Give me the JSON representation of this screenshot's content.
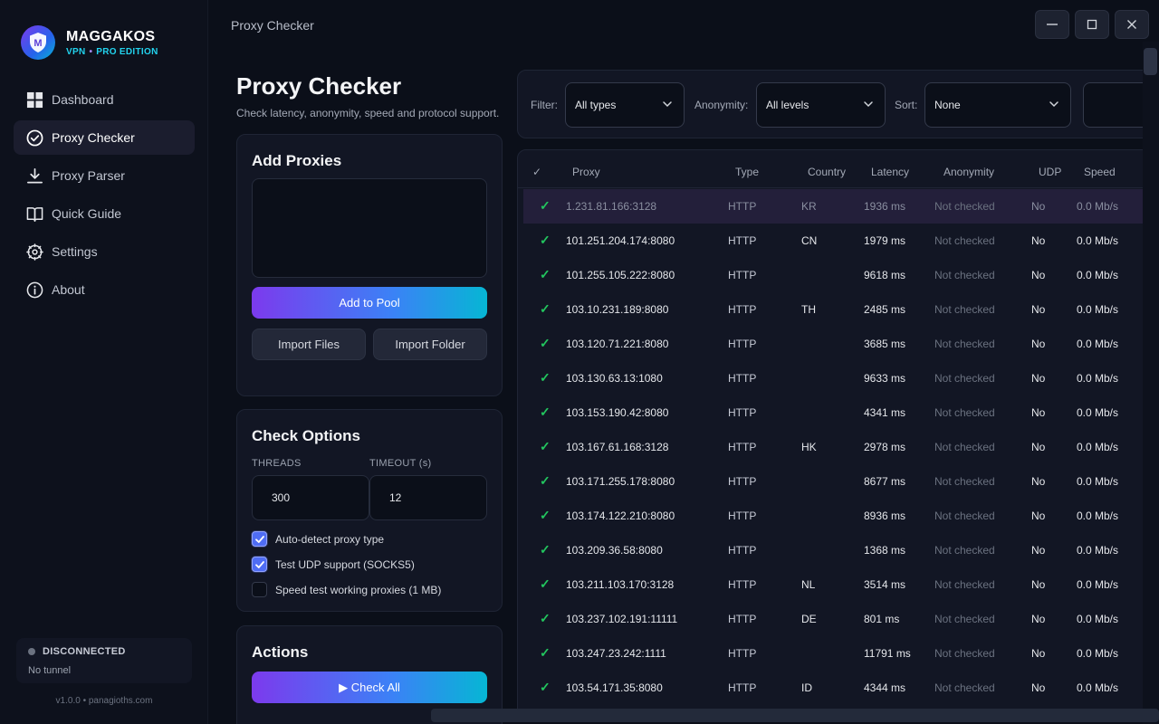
{
  "window": {
    "title": "Proxy Checker"
  },
  "brand": {
    "name": "MAGGAKOS",
    "sub_left": "VPN",
    "sub_dot": "•",
    "sub_right": "PRO EDITION",
    "logo_letter": "M"
  },
  "nav": [
    {
      "label": "Dashboard",
      "icon": "dashboard-icon"
    },
    {
      "label": "Proxy Checker",
      "icon": "check-circle-icon",
      "active": true
    },
    {
      "label": "Proxy Parser",
      "icon": "download-icon"
    },
    {
      "label": "Quick Guide",
      "icon": "book-icon"
    },
    {
      "label": "Settings",
      "icon": "gear-icon"
    },
    {
      "label": "About",
      "icon": "info-icon"
    }
  ],
  "status": {
    "state": "DISCONNECTED",
    "tunnel": "No tunnel"
  },
  "footer": {
    "version": "v1.0.0  •  panagioths.com"
  },
  "page": {
    "title": "Proxy Checker",
    "subtitle": "Check latency, anonymity, speed and protocol support."
  },
  "add_proxies": {
    "title": "Add Proxies",
    "textarea_value": "",
    "add_button": "Add to Pool",
    "import_files": "Import Files",
    "import_folder": "Import Folder"
  },
  "check_options": {
    "title": "Check Options",
    "threads_label": "THREADS",
    "threads_value": "300",
    "timeout_label": "TIMEOUT (s)",
    "timeout_value": "12",
    "auto_detect": {
      "label": "Auto-detect proxy type",
      "checked": true
    },
    "test_udp": {
      "label": "Test UDP support (SOCKS5)",
      "checked": true
    },
    "speed_test": {
      "label": "Speed test working proxies (1 MB)",
      "checked": false
    }
  },
  "actions": {
    "title": "Actions",
    "check_all": "▶ Check All"
  },
  "filters": {
    "filter_label": "Filter:",
    "filter_value": "All types",
    "anonymity_label": "Anonymity:",
    "anonymity_value": "All levels",
    "sort_label": "Sort:",
    "sort_value": "None"
  },
  "table": {
    "headers": {
      "check": "✓",
      "proxy": "Proxy",
      "type": "Type",
      "country": "Country",
      "latency": "Latency",
      "anonymity": "Anonymity",
      "udp": "UDP",
      "speed": "Speed"
    },
    "rows": [
      {
        "ok": "✓",
        "proxy": "1.231.81.166:3128",
        "type": "HTTP",
        "country": "KR",
        "latency": "1936 ms",
        "anonymity": "Not checked",
        "udp": "No",
        "speed": "0.0 Mb/s",
        "selected": true
      },
      {
        "ok": "✓",
        "proxy": "101.251.204.174:8080",
        "type": "HTTP",
        "country": "CN",
        "latency": "1979 ms",
        "anonymity": "Not checked",
        "udp": "No",
        "speed": "0.0 Mb/s"
      },
      {
        "ok": "✓",
        "proxy": "101.255.105.222:8080",
        "type": "HTTP",
        "country": "",
        "latency": "9618 ms",
        "anonymity": "Not checked",
        "udp": "No",
        "speed": "0.0 Mb/s"
      },
      {
        "ok": "✓",
        "proxy": "103.10.231.189:8080",
        "type": "HTTP",
        "country": "TH",
        "latency": "2485 ms",
        "anonymity": "Not checked",
        "udp": "No",
        "speed": "0.0 Mb/s"
      },
      {
        "ok": "✓",
        "proxy": "103.120.71.221:8080",
        "type": "HTTP",
        "country": "",
        "latency": "3685 ms",
        "anonymity": "Not checked",
        "udp": "No",
        "speed": "0.0 Mb/s"
      },
      {
        "ok": "✓",
        "proxy": "103.130.63.13:1080",
        "type": "HTTP",
        "country": "",
        "latency": "9633 ms",
        "anonymity": "Not checked",
        "udp": "No",
        "speed": "0.0 Mb/s"
      },
      {
        "ok": "✓",
        "proxy": "103.153.190.42:8080",
        "type": "HTTP",
        "country": "",
        "latency": "4341 ms",
        "anonymity": "Not checked",
        "udp": "No",
        "speed": "0.0 Mb/s"
      },
      {
        "ok": "✓",
        "proxy": "103.167.61.168:3128",
        "type": "HTTP",
        "country": "HK",
        "latency": "2978 ms",
        "anonymity": "Not checked",
        "udp": "No",
        "speed": "0.0 Mb/s"
      },
      {
        "ok": "✓",
        "proxy": "103.171.255.178:8080",
        "type": "HTTP",
        "country": "",
        "latency": "8677 ms",
        "anonymity": "Not checked",
        "udp": "No",
        "speed": "0.0 Mb/s"
      },
      {
        "ok": "✓",
        "proxy": "103.174.122.210:8080",
        "type": "HTTP",
        "country": "",
        "latency": "8936 ms",
        "anonymity": "Not checked",
        "udp": "No",
        "speed": "0.0 Mb/s"
      },
      {
        "ok": "✓",
        "proxy": "103.209.36.58:8080",
        "type": "HTTP",
        "country": "",
        "latency": "1368 ms",
        "anonymity": "Not checked",
        "udp": "No",
        "speed": "0.0 Mb/s"
      },
      {
        "ok": "✓",
        "proxy": "103.211.103.170:3128",
        "type": "HTTP",
        "country": "NL",
        "latency": "3514 ms",
        "anonymity": "Not checked",
        "udp": "No",
        "speed": "0.0 Mb/s"
      },
      {
        "ok": "✓",
        "proxy": "103.237.102.191:11111",
        "type": "HTTP",
        "country": "DE",
        "latency": "801 ms",
        "anonymity": "Not checked",
        "udp": "No",
        "speed": "0.0 Mb/s"
      },
      {
        "ok": "✓",
        "proxy": "103.247.23.242:1111",
        "type": "HTTP",
        "country": "",
        "latency": "11791 ms",
        "anonymity": "Not checked",
        "udp": "No",
        "speed": "0.0 Mb/s"
      },
      {
        "ok": "✓",
        "proxy": "103.54.171.35:8080",
        "type": "HTTP",
        "country": "ID",
        "latency": "4344 ms",
        "anonymity": "Not checked",
        "udp": "No",
        "speed": "0.0 Mb/s"
      }
    ]
  },
  "colors": {
    "accent_purple": "#7c3aed",
    "accent_cyan": "#06b6d4",
    "ok_green": "#22c55e",
    "background": "#0b0f19"
  }
}
